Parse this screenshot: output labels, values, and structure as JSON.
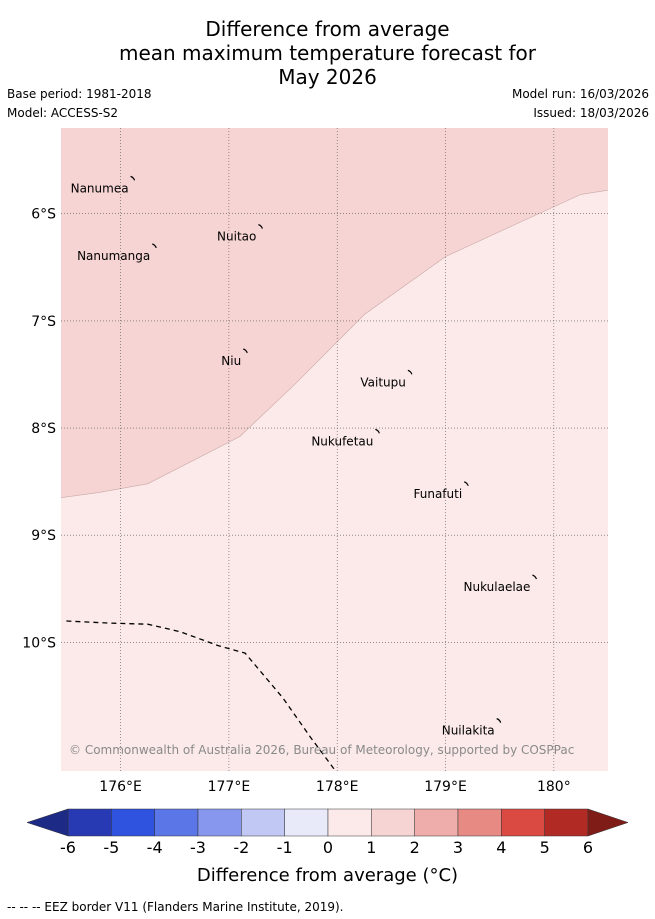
{
  "title": {
    "line1": "Difference from average",
    "line2": "mean maximum temperature forecast for",
    "line3": "May 2026"
  },
  "meta": {
    "base_period": "Base period: 1981-2018",
    "model": "Model: ACCESS-S2",
    "model_run": "Model run: 16/03/2026",
    "issued": "Issued: 18/03/2026"
  },
  "map": {
    "lon_range": [
      175.45,
      180.5
    ],
    "lat_range": [
      -5.2,
      -11.2
    ],
    "lon_ticks": [
      {
        "value": 176,
        "label": "176°E"
      },
      {
        "value": 177,
        "label": "177°E"
      },
      {
        "value": 178,
        "label": "178°E"
      },
      {
        "value": 179,
        "label": "179°E"
      },
      {
        "value": 180,
        "label": "180°"
      }
    ],
    "lat_ticks": [
      {
        "value": -6,
        "label": "6°S"
      },
      {
        "value": -7,
        "label": "7°S"
      },
      {
        "value": -8,
        "label": "8°S"
      },
      {
        "value": -9,
        "label": "9°S"
      },
      {
        "value": -10,
        "label": "10°S"
      }
    ],
    "zones": [
      {
        "name": "anomaly-1-to-2",
        "color": "#f6d4d3",
        "boundary": [
          [
            175.45,
            -8.65
          ],
          [
            175.8,
            -8.6
          ],
          [
            176.25,
            -8.52
          ],
          [
            177.1,
            -8.08
          ],
          [
            177.6,
            -7.6
          ],
          [
            178.25,
            -6.94
          ],
          [
            179,
            -6.4
          ],
          [
            179.6,
            -6.12
          ],
          [
            180.25,
            -5.82
          ],
          [
            180.5,
            -5.78
          ]
        ]
      },
      {
        "name": "anomaly-0-to-1",
        "color": "#fbeae9"
      }
    ],
    "eez_border": [
      [
        175.5,
        -9.8
      ],
      [
        175.9,
        -9.82
      ],
      [
        176.25,
        -9.83
      ],
      [
        176.55,
        -9.9
      ],
      [
        176.9,
        -10.03
      ],
      [
        177.15,
        -10.1
      ],
      [
        177.5,
        -10.52
      ],
      [
        177.75,
        -10.88
      ],
      [
        177.97,
        -11.18
      ]
    ],
    "islands": [
      {
        "name": "Nanumea",
        "lon": 176.12,
        "lat": -5.67
      },
      {
        "name": "Nuitao",
        "lon": 177.3,
        "lat": -6.12
      },
      {
        "name": "Nanumanga",
        "lon": 176.32,
        "lat": -6.3
      },
      {
        "name": "Niu",
        "lon": 177.16,
        "lat": -7.28
      },
      {
        "name": "Vaitupu",
        "lon": 178.68,
        "lat": -7.48
      },
      {
        "name": "Nukufetau",
        "lon": 178.38,
        "lat": -8.03
      },
      {
        "name": "Funafuti",
        "lon": 179.2,
        "lat": -8.52
      },
      {
        "name": "Nukulaelae",
        "lon": 179.83,
        "lat": -9.39
      },
      {
        "name": "Nuilakita",
        "lon": 179.5,
        "lat": -10.73
      }
    ],
    "copyright": "© Commonwealth of Australia 2026, Bureau of Meteorology, supported by COSPPac"
  },
  "colorbar": {
    "colors": [
      "#273ab3",
      "#2f52df",
      "#5b76e7",
      "#8797ed",
      "#c2c8f4",
      "#e8eafa",
      "#fbeae9",
      "#f6d4d3",
      "#eeadaa",
      "#e88a84",
      "#db4a42",
      "#b12a24"
    ],
    "low_extend_color": "#1d2a86",
    "high_extend_color": "#7f1c18",
    "tick_labels": [
      "-6",
      "-5",
      "-4",
      "-3",
      "-2",
      "-1",
      "0",
      "1",
      "2",
      "3",
      "4",
      "5",
      "6"
    ],
    "title": "Difference from average (°C)"
  },
  "footer": "--  --  -- EEZ border V11 (Flanders Marine Institute, 2019)."
}
